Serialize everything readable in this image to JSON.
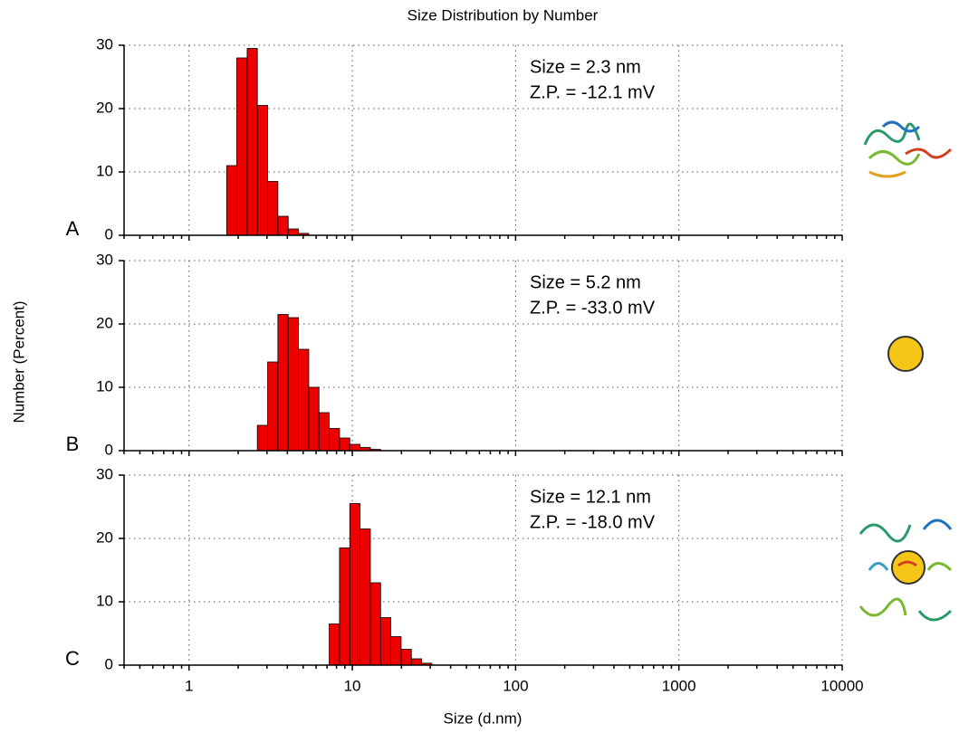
{
  "chart_data": [
    {
      "type": "histogram",
      "title": "Size Distribution by Number",
      "y_label": "Number (Percent)",
      "panel_label": "A",
      "annotations": [
        "Size = 2.3 nm",
        "Z.P. = -12.1 mV"
      ],
      "bins": [
        1.7,
        1.96,
        2.27,
        2.62,
        3.03,
        3.5,
        4.05,
        4.68,
        5.41
      ],
      "values": [
        11,
        28,
        29.5,
        20.5,
        8.5,
        3,
        1,
        0.3
      ],
      "color": "#ee0000",
      "log_x": true,
      "grid": true,
      "xlim": [
        0.4,
        10000
      ],
      "ylim": [
        0,
        30
      ],
      "xticks": [
        1,
        10,
        100,
        1000,
        10000
      ],
      "yticks": [
        0,
        10,
        20,
        30
      ]
    },
    {
      "type": "histogram",
      "panel_label": "B",
      "annotations": [
        "Size = 5.2 nm",
        "Z.P. = -33.0 mV"
      ],
      "bins": [
        2.62,
        3.03,
        3.5,
        4.05,
        4.68,
        5.41,
        6.25,
        7.22,
        8.35,
        9.65,
        11.15,
        12.9,
        14.9
      ],
      "values": [
        4,
        14,
        21.5,
        21,
        16,
        10,
        6,
        3.5,
        2,
        1,
        0.5,
        0.2
      ],
      "color": "#ee0000",
      "log_x": true,
      "grid": true,
      "xlim": [
        0.4,
        10000
      ],
      "ylim": [
        0,
        30
      ],
      "xticks": [
        1,
        10,
        100,
        1000,
        10000
      ],
      "yticks": [
        0,
        10,
        20,
        30
      ]
    },
    {
      "type": "histogram",
      "panel_label": "C",
      "x_label": "Size (d.nm)",
      "annotations": [
        "Size = 12.1 nm",
        "Z.P. = -18.0 mV"
      ],
      "bins": [
        7.22,
        8.35,
        9.65,
        11.15,
        12.9,
        14.9,
        17.2,
        19.9,
        23.0,
        26.6,
        30.7
      ],
      "values": [
        6.5,
        18.5,
        25.5,
        21.5,
        13,
        7.5,
        4.5,
        2.5,
        1,
        0.3
      ],
      "color": "#ee0000",
      "log_x": true,
      "grid": true,
      "xlim": [
        0.4,
        10000
      ],
      "ylim": [
        0,
        30
      ],
      "xticks": [
        1,
        10,
        100,
        1000,
        10000
      ],
      "yticks": [
        0,
        10,
        20,
        30
      ]
    }
  ]
}
